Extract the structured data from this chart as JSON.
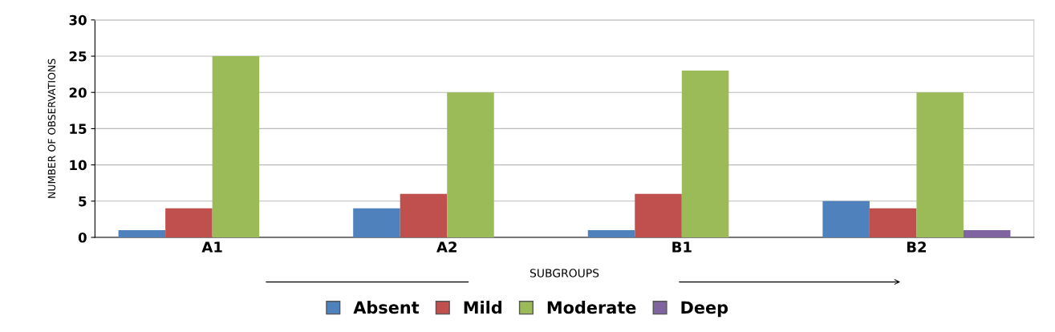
{
  "chart_data": {
    "type": "bar",
    "categories": [
      "A1",
      "A2",
      "B1",
      "B2"
    ],
    "xlabel": "SUBGROUPS",
    "ylabel": "NUMBER OF OBSERVATIONS",
    "series": [
      {
        "name": "Absent",
        "color": "#4f81bd",
        "values": [
          1,
          4,
          1,
          5
        ]
      },
      {
        "name": "Mild",
        "color": "#c0504d",
        "values": [
          4,
          6,
          6,
          4
        ]
      },
      {
        "name": "Moderate",
        "color": "#9bbb59",
        "values": [
          25,
          20,
          23,
          20
        ]
      },
      {
        "name": "Deep",
        "color": "#8064a2",
        "values": [
          0,
          0,
          0,
          1
        ]
      }
    ],
    "ylim": [
      0,
      30
    ],
    "yticks": [
      0,
      5,
      10,
      15,
      20,
      25,
      30
    ],
    "grid": "y",
    "legend": "bottom"
  }
}
